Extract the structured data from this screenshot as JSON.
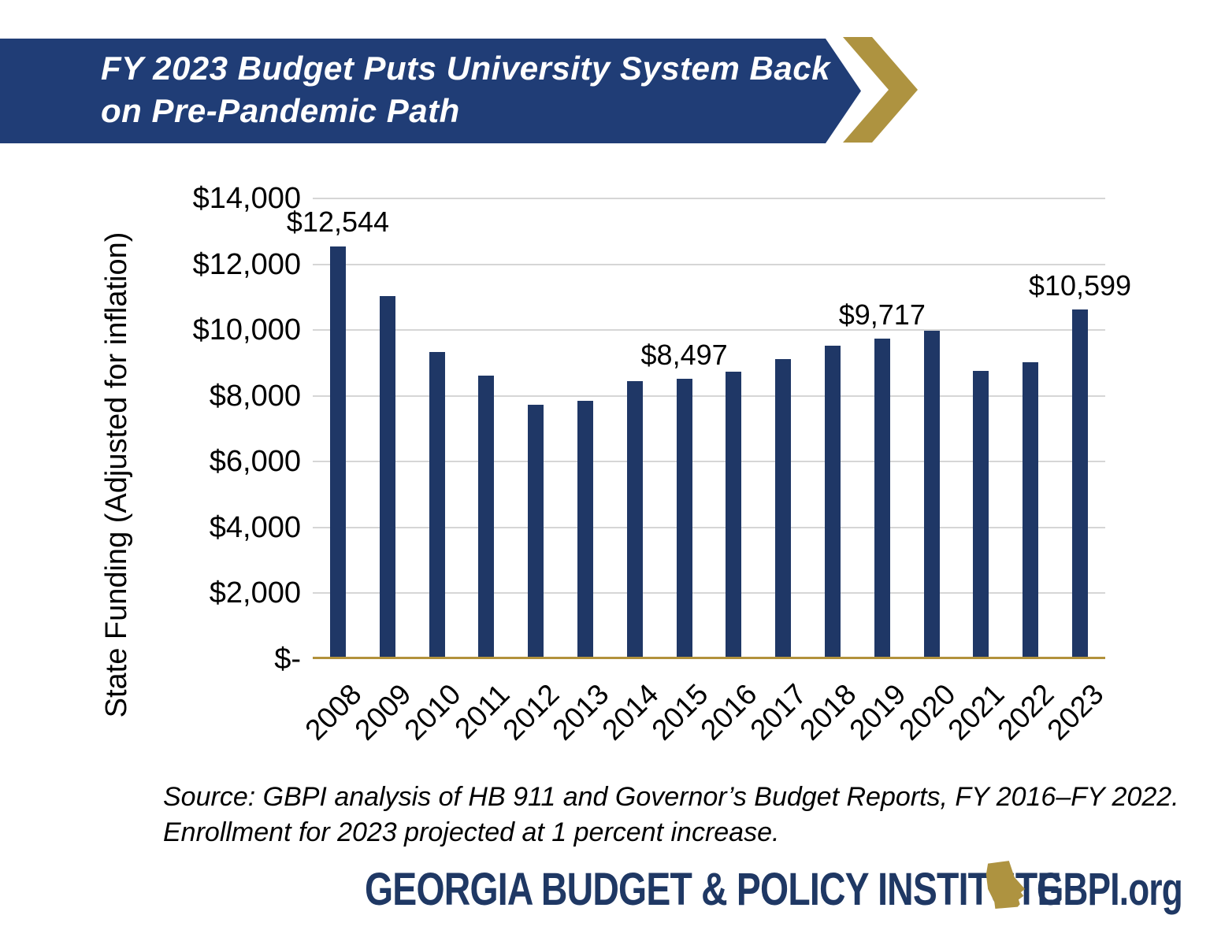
{
  "banner": {
    "title_line1": "FY 2023 Budget Puts University System Back",
    "title_line2": "on Pre-Pandemic Path",
    "background_color": "#203D76",
    "text_color": "#FFFFFF",
    "chevron_color": "#AE9340"
  },
  "chart_data": {
    "type": "bar",
    "title": "",
    "xlabel": "",
    "ylabel": "State Funding (Adjusted for inflation)",
    "ylim": [
      0,
      14000
    ],
    "ytick_step": 2000,
    "ytick_labels": [
      "$-",
      "$2,000",
      "$4,000",
      "$6,000",
      "$8,000",
      "$10,000",
      "$12,000",
      "$14,000"
    ],
    "grid": true,
    "legend": false,
    "categories": [
      "2008",
      "2009",
      "2010",
      "2011",
      "2012",
      "2013",
      "2014",
      "2015",
      "2016",
      "2017",
      "2018",
      "2019",
      "2020",
      "2021",
      "2022",
      "2023"
    ],
    "values": [
      12544,
      11020,
      9320,
      8590,
      7690,
      7810,
      8420,
      8497,
      8720,
      9090,
      9500,
      9717,
      9960,
      8740,
      9000,
      10599
    ],
    "data_labels": [
      {
        "year": "2008",
        "label": "$12,544"
      },
      {
        "year": "2015",
        "label": "$8,497"
      },
      {
        "year": "2019",
        "label": "$9,717"
      },
      {
        "year": "2023",
        "label": "$10,599"
      }
    ],
    "bar_color": "#1F3766",
    "gridline_color": "#D6D6D6",
    "baseline_color": "#B2923B"
  },
  "source": {
    "line1": "Source: GBPI analysis of HB 911 and Governor’s Budget Reports, FY 2016–FY 2022.",
    "line2": "Enrollment for 2023 projected at 1 percent increase."
  },
  "footer": {
    "org": "GEORGIA BUDGET & POLICY INSTITUTE",
    "site": "GBPI.org",
    "georgia_icon": "georgia-state-silhouette",
    "navy": "#1F3864",
    "gold": "#AE9340"
  }
}
